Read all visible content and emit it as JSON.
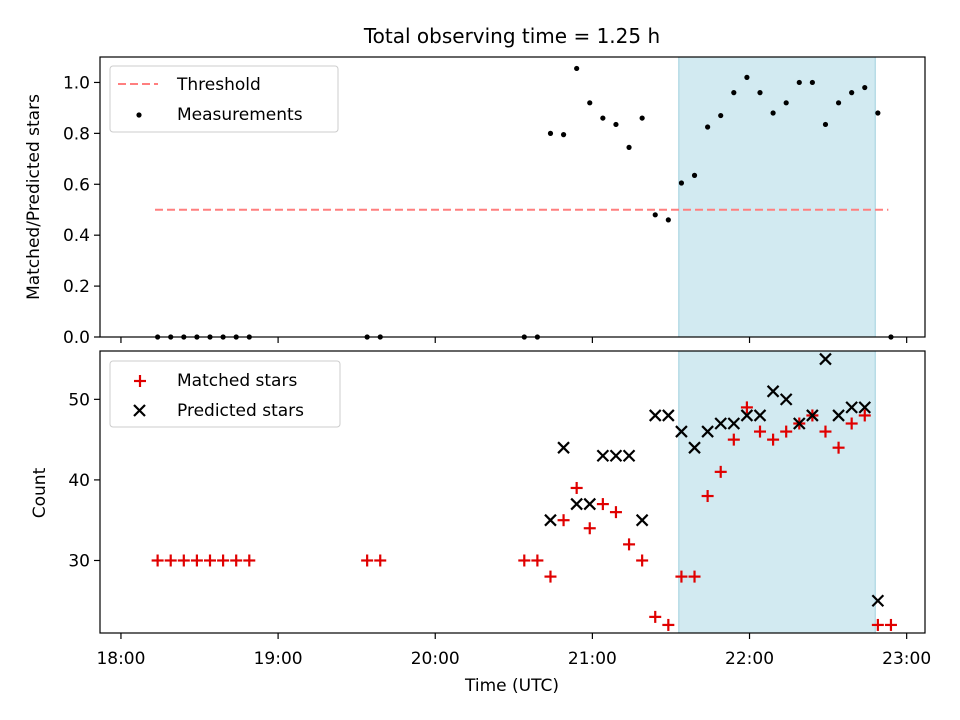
{
  "title": "Total observing time = 1.25 h",
  "colors": {
    "threshold": "#ff7f7f",
    "measurement": "#000000",
    "matched": "#e00000",
    "predicted": "#000000",
    "shade": "#add8e6"
  },
  "chart_data": [
    {
      "type": "scatter",
      "ylabel": "Matched/Predicted stars",
      "xlim": [
        "18:00",
        "23:00"
      ],
      "ylim": [
        0,
        1.1
      ],
      "yticks": [
        0.0,
        0.2,
        0.4,
        0.6,
        0.8,
        1.0
      ],
      "ytick_labels": [
        "0.0",
        "0.2",
        "0.4",
        "0.6",
        "0.8",
        "1.0"
      ],
      "legend": {
        "position": "top-left",
        "threshold_label": "Threshold",
        "measurements_label": "Measurements"
      },
      "shaded_interval": [
        "21:33",
        "22:48"
      ],
      "threshold": {
        "y": 0.5,
        "x_start": "18:13",
        "x_end": "22:53"
      },
      "measurements": {
        "x": [
          "18:14",
          "18:19",
          "18:24",
          "18:29",
          "18:34",
          "18:39",
          "18:44",
          "18:49",
          "19:34",
          "19:39",
          "20:34",
          "20:39",
          "20:44",
          "20:49",
          "20:54",
          "20:59",
          "21:04",
          "21:09",
          "21:14",
          "21:19",
          "21:24",
          "21:29",
          "21:34",
          "21:39",
          "21:44",
          "21:49",
          "21:54",
          "21:59",
          "22:04",
          "22:09",
          "22:14",
          "22:19",
          "22:24",
          "22:29",
          "22:34",
          "22:39",
          "22:44",
          "22:49",
          "22:54"
        ],
        "y": [
          0,
          0,
          0,
          0,
          0,
          0,
          0,
          0,
          0,
          0,
          0,
          0,
          0.8,
          0.795,
          1.055,
          0.92,
          0.86,
          0.835,
          0.745,
          0.86,
          0.48,
          0.46,
          0.605,
          0.635,
          0.825,
          0.87,
          0.96,
          1.02,
          0.96,
          0.88,
          0.92,
          1.0,
          1.0,
          0.835,
          0.92,
          0.96,
          0.98,
          0.88,
          0
        ]
      }
    },
    {
      "type": "scatter",
      "xlabel": "Time (UTC)",
      "ylabel": "Count",
      "xlim": [
        "18:00",
        "23:00"
      ],
      "xticks": [
        "18:00",
        "19:00",
        "20:00",
        "21:00",
        "22:00",
        "23:00"
      ],
      "ylim": [
        21,
        56
      ],
      "yticks": [
        30,
        40,
        50
      ],
      "ytick_labels": [
        "30",
        "40",
        "50"
      ],
      "legend": {
        "position": "top-left",
        "matched_label": "Matched stars",
        "predicted_label": "Predicted stars"
      },
      "shaded_interval": [
        "21:33",
        "22:48"
      ],
      "series": [
        {
          "name": "Matched stars",
          "marker": "plus",
          "x": [
            "18:14",
            "18:19",
            "18:24",
            "18:29",
            "18:34",
            "18:39",
            "18:44",
            "18:49",
            "19:34",
            "19:39",
            "20:34",
            "20:39",
            "20:44",
            "20:49",
            "20:54",
            "20:59",
            "21:04",
            "21:09",
            "21:14",
            "21:19",
            "21:24",
            "21:29",
            "21:34",
            "21:39",
            "21:44",
            "21:49",
            "21:54",
            "21:59",
            "22:04",
            "22:09",
            "22:14",
            "22:19",
            "22:24",
            "22:29",
            "22:34",
            "22:39",
            "22:44",
            "22:49",
            "22:54"
          ],
          "values": [
            30,
            30,
            30,
            30,
            30,
            30,
            30,
            30,
            30,
            30,
            30,
            30,
            28,
            35,
            39,
            34,
            37,
            36,
            32,
            30,
            23,
            22,
            28,
            28,
            38,
            41,
            45,
            49,
            46,
            45,
            46,
            47,
            48,
            46,
            44,
            47,
            48,
            22,
            22
          ]
        },
        {
          "name": "Predicted stars",
          "marker": "x",
          "x": [
            "20:44",
            "20:49",
            "20:54",
            "20:59",
            "21:04",
            "21:09",
            "21:14",
            "21:19",
            "21:24",
            "21:29",
            "21:34",
            "21:39",
            "21:44",
            "21:49",
            "21:54",
            "21:59",
            "22:04",
            "22:09",
            "22:14",
            "22:19",
            "22:24",
            "22:29",
            "22:34",
            "22:39",
            "22:44",
            "22:49"
          ],
          "values": [
            35,
            44,
            37,
            37,
            43,
            43,
            43,
            35,
            48,
            48,
            46,
            44,
            46,
            47,
            47,
            48,
            48,
            51,
            50,
            47,
            48,
            55,
            48,
            49,
            49,
            25
          ]
        }
      ]
    }
  ]
}
